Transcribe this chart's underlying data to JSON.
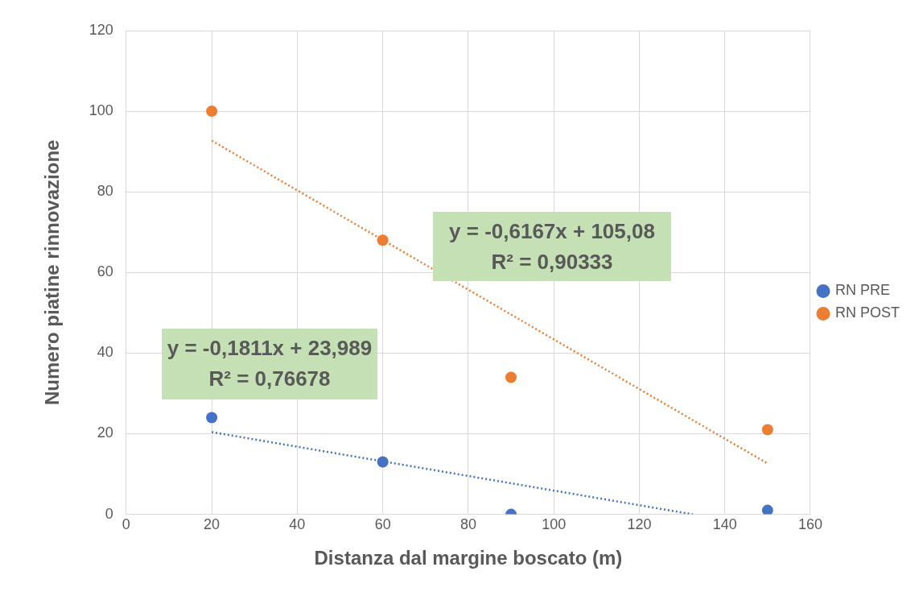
{
  "chart_data": {
    "type": "scatter",
    "xlabel": "Distanza dal margine boscato (m)",
    "ylabel": "Numero piatine rinnovazione",
    "xlim": [
      0,
      160
    ],
    "xticks": [
      0,
      20,
      40,
      60,
      80,
      100,
      120,
      140,
      160
    ],
    "ylim": [
      0,
      120
    ],
    "yticks": [
      0,
      20,
      40,
      60,
      80,
      100,
      120
    ],
    "grid": true,
    "legend": "right",
    "marker": "circle",
    "series": [
      {
        "name": "RN PRE",
        "color": "#4472c4",
        "x": [
          20,
          60,
          90,
          150
        ],
        "values": [
          24,
          13,
          0,
          1
        ]
      },
      {
        "name": "RN POST",
        "color": "#ed7d31",
        "x": [
          20,
          60,
          90,
          150
        ],
        "values": [
          100,
          68,
          34,
          21
        ]
      },
      {
        "type": "line",
        "color": "#4472c4",
        "line_style": "dotted",
        "marker": "none",
        "x": [
          20,
          132.5
        ],
        "values": [
          20.4,
          0
        ]
      },
      {
        "type": "line",
        "color": "#ed7d31",
        "line_style": "dotted",
        "marker": "none",
        "x": [
          20,
          150
        ],
        "values": [
          92.7,
          12.6
        ]
      }
    ],
    "annotations": [
      "y = -0,6167x + 105,08\nR² = 0,90333",
      "y = -0,1811x + 23,989\nR² = 0,76678"
    ]
  }
}
